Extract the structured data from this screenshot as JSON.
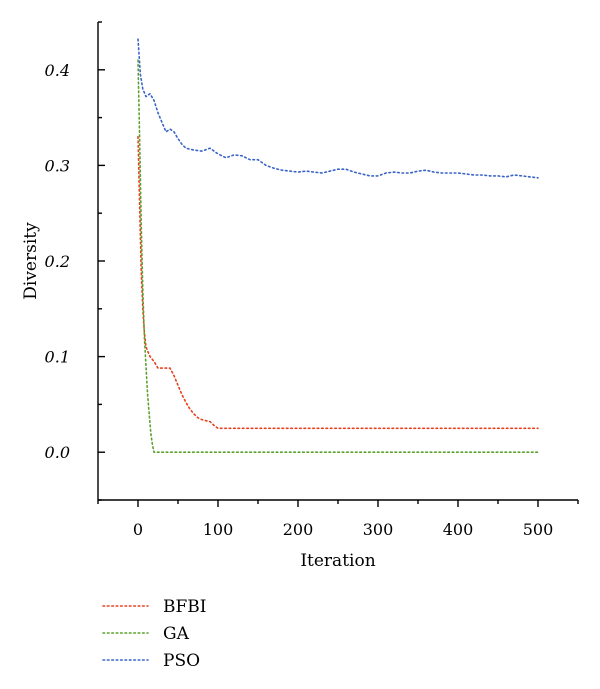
{
  "chart_data": {
    "type": "line",
    "title": "",
    "xlabel": "Iteration",
    "ylabel": "Diversity",
    "xlim": [
      -50,
      550
    ],
    "ylim": [
      -0.05,
      0.45
    ],
    "x_ticks": [
      0,
      100,
      200,
      300,
      400,
      500
    ],
    "x_tick_labels": [
      "0",
      "100",
      "200",
      "300",
      "400",
      "500"
    ],
    "y_ticks": [
      0.0,
      0.1,
      0.2,
      0.3,
      0.4
    ],
    "y_tick_labels": [
      "0.0",
      "0.1",
      "0.2",
      "0.3",
      "0.4"
    ],
    "grid": false,
    "legend_position": "bottom-left",
    "series": [
      {
        "name": "BFBI",
        "color": "#e8411e",
        "points": [
          [
            0,
            0.33
          ],
          [
            2,
            0.26
          ],
          [
            4,
            0.19
          ],
          [
            6,
            0.15
          ],
          [
            8,
            0.125
          ],
          [
            10,
            0.11
          ],
          [
            15,
            0.1
          ],
          [
            20,
            0.095
          ],
          [
            25,
            0.088
          ],
          [
            30,
            0.088
          ],
          [
            35,
            0.088
          ],
          [
            40,
            0.088
          ],
          [
            45,
            0.08
          ],
          [
            50,
            0.07
          ],
          [
            55,
            0.06
          ],
          [
            60,
            0.052
          ],
          [
            65,
            0.045
          ],
          [
            70,
            0.04
          ],
          [
            75,
            0.036
          ],
          [
            80,
            0.034
          ],
          [
            85,
            0.033
          ],
          [
            90,
            0.032
          ],
          [
            95,
            0.028
          ],
          [
            100,
            0.025
          ],
          [
            150,
            0.025
          ],
          [
            200,
            0.025
          ],
          [
            300,
            0.025
          ],
          [
            400,
            0.025
          ],
          [
            500,
            0.025
          ]
        ]
      },
      {
        "name": "GA",
        "color": "#5aa02c",
        "points": [
          [
            0,
            0.41
          ],
          [
            2,
            0.33
          ],
          [
            4,
            0.24
          ],
          [
            6,
            0.17
          ],
          [
            8,
            0.12
          ],
          [
            10,
            0.09
          ],
          [
            12,
            0.06
          ],
          [
            14,
            0.04
          ],
          [
            16,
            0.02
          ],
          [
            18,
            0.008
          ],
          [
            20,
            0.0
          ],
          [
            100,
            0.0
          ],
          [
            200,
            0.0
          ],
          [
            300,
            0.0
          ],
          [
            400,
            0.0
          ],
          [
            500,
            0.0
          ]
        ]
      },
      {
        "name": "PSO",
        "color": "#3a64c8",
        "points": [
          [
            0,
            0.432
          ],
          [
            3,
            0.395
          ],
          [
            6,
            0.38
          ],
          [
            10,
            0.372
          ],
          [
            15,
            0.375
          ],
          [
            20,
            0.368
          ],
          [
            25,
            0.355
          ],
          [
            30,
            0.345
          ],
          [
            35,
            0.335
          ],
          [
            40,
            0.338
          ],
          [
            45,
            0.335
          ],
          [
            50,
            0.328
          ],
          [
            55,
            0.322
          ],
          [
            60,
            0.318
          ],
          [
            70,
            0.316
          ],
          [
            80,
            0.315
          ],
          [
            90,
            0.318
          ],
          [
            100,
            0.312
          ],
          [
            110,
            0.308
          ],
          [
            120,
            0.311
          ],
          [
            130,
            0.31
          ],
          [
            140,
            0.306
          ],
          [
            150,
            0.306
          ],
          [
            160,
            0.3
          ],
          [
            170,
            0.297
          ],
          [
            180,
            0.295
          ],
          [
            190,
            0.294
          ],
          [
            200,
            0.293
          ],
          [
            210,
            0.294
          ],
          [
            220,
            0.293
          ],
          [
            230,
            0.292
          ],
          [
            240,
            0.294
          ],
          [
            250,
            0.296
          ],
          [
            260,
            0.296
          ],
          [
            270,
            0.293
          ],
          [
            280,
            0.291
          ],
          [
            290,
            0.289
          ],
          [
            300,
            0.289
          ],
          [
            310,
            0.292
          ],
          [
            320,
            0.293
          ],
          [
            330,
            0.292
          ],
          [
            340,
            0.292
          ],
          [
            350,
            0.294
          ],
          [
            360,
            0.295
          ],
          [
            370,
            0.293
          ],
          [
            380,
            0.292
          ],
          [
            390,
            0.292
          ],
          [
            400,
            0.292
          ],
          [
            410,
            0.291
          ],
          [
            420,
            0.29
          ],
          [
            430,
            0.29
          ],
          [
            440,
            0.289
          ],
          [
            450,
            0.289
          ],
          [
            460,
            0.288
          ],
          [
            470,
            0.29
          ],
          [
            480,
            0.289
          ],
          [
            490,
            0.288
          ],
          [
            500,
            0.287
          ]
        ]
      }
    ]
  }
}
